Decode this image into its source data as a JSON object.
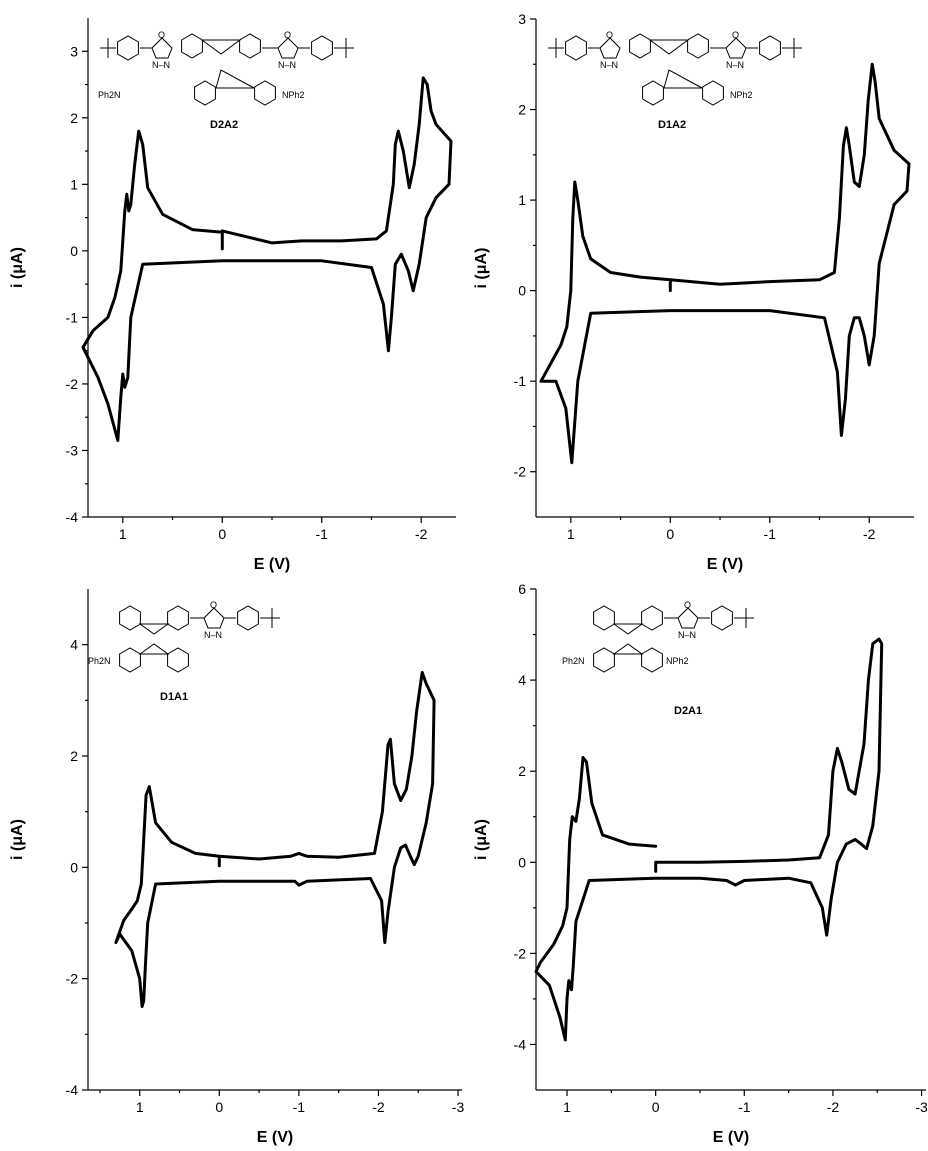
{
  "chart_data": [
    {
      "type": "line",
      "panel": "top-left",
      "structure_label": "D2A2",
      "xlabel": "E (V)",
      "ylabel": "i (μA)",
      "xlim": [
        1.35,
        -2.35
      ],
      "ylim": [
        -4,
        3.5
      ],
      "xticks": [
        1,
        0,
        -1,
        -2
      ],
      "xtick_labels": [
        "1",
        "0",
        "-1",
        "-2"
      ],
      "yticks": [
        -4,
        -3,
        -2,
        -1,
        0,
        1,
        2,
        3
      ],
      "ytick_labels": [
        "-4",
        "-3",
        "-2",
        "-1",
        "0",
        "1",
        "2",
        "3"
      ],
      "structure_text": [
        "Ph2N",
        "NPh2",
        "O",
        "N–N"
      ],
      "x": [
        0,
        0,
        -0.5,
        -0.8,
        -1.2,
        -1.55,
        -1.65,
        -1.72,
        -1.74,
        -1.77,
        -1.82,
        -1.88,
        -1.93,
        -1.98,
        -2.02,
        -2.06,
        -2.1,
        -2.15,
        -2.3,
        -2.28,
        -2.15,
        -2.05,
        -2.0,
        -1.98,
        -1.92,
        -1.87,
        -1.8,
        -1.74,
        -1.7,
        -1.67,
        -1.62,
        -1.5,
        -1.0,
        0,
        0.8,
        0.92,
        0.95,
        0.98,
        1.0,
        1.02,
        1.05,
        1.15,
        1.25,
        1.4,
        1.3,
        1.15,
        1.08,
        1.02,
        0.98,
        0.96,
        0.94,
        0.92,
        0.88,
        0.84,
        0.8,
        0.75,
        0.6,
        0.3,
        0
      ],
      "y": [
        0.03,
        0.3,
        0.12,
        0.15,
        0.15,
        0.18,
        0.3,
        1.0,
        1.6,
        1.8,
        1.5,
        0.95,
        1.3,
        1.9,
        2.6,
        2.5,
        2.1,
        1.9,
        1.65,
        1.0,
        0.8,
        0.5,
        0.0,
        -0.2,
        -0.6,
        -0.3,
        -0.05,
        -0.2,
        -1.0,
        -1.5,
        -0.8,
        -0.25,
        -0.15,
        -0.15,
        -0.2,
        -1.0,
        -1.9,
        -2.05,
        -1.85,
        -2.2,
        -2.85,
        -2.3,
        -1.9,
        -1.45,
        -1.2,
        -1.0,
        -0.7,
        -0.3,
        0.6,
        0.85,
        0.6,
        0.7,
        1.3,
        1.8,
        1.6,
        0.95,
        0.55,
        0.32,
        0.28
      ]
    },
    {
      "type": "line",
      "panel": "top-right",
      "structure_label": "D1A2",
      "xlabel": "E (V)",
      "ylabel": "i (μA)",
      "xlim": [
        1.35,
        -2.45
      ],
      "ylim": [
        -2.5,
        3
      ],
      "xticks": [
        1,
        0,
        -1,
        -2
      ],
      "xtick_labels": [
        "1",
        "0",
        "-1",
        "-2"
      ],
      "yticks": [
        -2,
        -1,
        0,
        1,
        2,
        3
      ],
      "ytick_labels": [
        "-2",
        "-1",
        "0",
        "1",
        "2",
        "3"
      ],
      "structure_text": [
        "NPh2",
        "O",
        "N–N"
      ],
      "x": [
        0,
        0,
        -0.5,
        -1.0,
        -1.5,
        -1.65,
        -1.7,
        -1.74,
        -1.77,
        -1.8,
        -1.85,
        -1.9,
        -1.95,
        -1.99,
        -2.03,
        -2.06,
        -2.1,
        -2.25,
        -2.4,
        -2.38,
        -2.25,
        -2.1,
        -2.05,
        -2.0,
        -1.95,
        -1.9,
        -1.85,
        -1.8,
        -1.76,
        -1.72,
        -1.68,
        -1.55,
        -1.0,
        0,
        0.8,
        0.93,
        0.97,
        0.99,
        1.01,
        1.05,
        1.15,
        1.3,
        1.2,
        1.1,
        1.04,
        1.0,
        0.98,
        0.96,
        0.93,
        0.88,
        0.8,
        0.6,
        0.3,
        0
      ],
      "y": [
        0.0,
        0.12,
        0.07,
        0.1,
        0.12,
        0.2,
        0.8,
        1.6,
        1.8,
        1.6,
        1.2,
        1.15,
        1.5,
        2.1,
        2.5,
        2.3,
        1.9,
        1.55,
        1.4,
        1.1,
        0.95,
        0.3,
        -0.5,
        -0.82,
        -0.5,
        -0.3,
        -0.3,
        -0.5,
        -1.2,
        -1.6,
        -0.9,
        -0.3,
        -0.22,
        -0.22,
        -0.25,
        -1.0,
        -1.6,
        -1.9,
        -1.7,
        -1.3,
        -1.0,
        -1.0,
        -0.8,
        -0.6,
        -0.4,
        0.0,
        0.8,
        1.2,
        1.0,
        0.6,
        0.35,
        0.2,
        0.15,
        0.12
      ]
    },
    {
      "type": "line",
      "panel": "bottom-left",
      "structure_label": "D1A1",
      "xlabel": "E (V)",
      "ylabel": "i (μA)",
      "xlim": [
        1.65,
        -3.05
      ],
      "ylim": [
        -4,
        5
      ],
      "xticks": [
        1,
        0,
        -1,
        -2,
        -3
      ],
      "xtick_labels": [
        "1",
        "0",
        "-1",
        "-2",
        "-3"
      ],
      "yticks": [
        -4,
        -2,
        0,
        2,
        4
      ],
      "ytick_labels": [
        "-4",
        "-2",
        "0",
        "2",
        "4"
      ],
      "structure_text": [
        "Ph2N",
        "O",
        "N–N"
      ],
      "x": [
        0,
        0,
        -0.5,
        -0.9,
        -1.0,
        -1.1,
        -1.5,
        -1.95,
        -2.05,
        -2.12,
        -2.15,
        -2.2,
        -2.28,
        -2.35,
        -2.42,
        -2.48,
        -2.55,
        -2.6,
        -2.7,
        -2.68,
        -2.6,
        -2.5,
        -2.45,
        -2.4,
        -2.34,
        -2.28,
        -2.2,
        -2.12,
        -2.08,
        -2.04,
        -1.9,
        -1.1,
        -1.0,
        -0.95,
        -0.5,
        0,
        0.8,
        0.9,
        0.93,
        0.95,
        0.97,
        1.0,
        1.1,
        1.25,
        1.3,
        1.2,
        1.1,
        1.03,
        0.98,
        0.95,
        0.92,
        0.88,
        0.8,
        0.6,
        0.3,
        0
      ],
      "y": [
        0.03,
        0.2,
        0.15,
        0.2,
        0.25,
        0.2,
        0.18,
        0.25,
        1.0,
        2.2,
        2.3,
        1.5,
        1.2,
        1.4,
        2.0,
        2.8,
        3.5,
        3.3,
        3.0,
        1.5,
        0.8,
        0.2,
        0.05,
        0.2,
        0.4,
        0.35,
        0.0,
        -0.8,
        -1.35,
        -0.6,
        -0.2,
        -0.25,
        -0.32,
        -0.25,
        -0.25,
        -0.25,
        -0.3,
        -1.0,
        -1.8,
        -2.4,
        -2.5,
        -2.0,
        -1.5,
        -1.2,
        -1.35,
        -0.95,
        -0.75,
        -0.6,
        -0.3,
        0.5,
        1.3,
        1.45,
        0.8,
        0.45,
        0.25,
        0.2
      ]
    },
    {
      "type": "line",
      "panel": "bottom-right",
      "structure_label": "D2A1",
      "xlabel": "E (V)",
      "ylabel": "i (μA)",
      "xlim": [
        1.35,
        -3.05
      ],
      "ylim": [
        -5,
        6
      ],
      "xticks": [
        1,
        0,
        -1,
        -2,
        -3
      ],
      "xtick_labels": [
        "1",
        "0",
        "-1",
        "-2",
        "-3"
      ],
      "yticks": [
        -4,
        -2,
        0,
        2,
        4,
        6
      ],
      "ytick_labels": [
        "-4",
        "-2",
        "0",
        "2",
        "4",
        "6"
      ],
      "structure_text": [
        "Ph2N",
        "NPh2",
        "O",
        "N–N"
      ],
      "x": [
        0,
        0,
        -0.5,
        -1.0,
        -1.5,
        -1.85,
        -1.95,
        -2.0,
        -2.05,
        -2.1,
        -2.18,
        -2.25,
        -2.35,
        -2.4,
        -2.45,
        -2.52,
        -2.55,
        -2.52,
        -2.45,
        -2.38,
        -2.32,
        -2.25,
        -2.15,
        -2.05,
        -1.98,
        -1.93,
        -1.88,
        -1.75,
        -1.5,
        -1.0,
        -0.9,
        -0.8,
        -0.5,
        0,
        0.75,
        0.9,
        0.93,
        0.95,
        0.98,
        1.0,
        1.02,
        1.08,
        1.2,
        1.35,
        1.3,
        1.15,
        1.05,
        1.0,
        0.97,
        0.94,
        0.9,
        0.86,
        0.82,
        0.78,
        0.72,
        0.6,
        0.3,
        0
      ],
      "y": [
        -0.2,
        0.0,
        0.0,
        0.02,
        0.05,
        0.1,
        0.6,
        2.0,
        2.5,
        2.2,
        1.6,
        1.5,
        2.6,
        4.0,
        4.8,
        4.9,
        4.8,
        2.0,
        0.8,
        0.3,
        0.4,
        0.5,
        0.4,
        0.0,
        -0.8,
        -1.6,
        -1.0,
        -0.45,
        -0.35,
        -0.4,
        -0.5,
        -0.4,
        -0.35,
        -0.35,
        -0.4,
        -1.3,
        -2.3,
        -2.8,
        -2.6,
        -3.0,
        -3.9,
        -3.4,
        -2.7,
        -2.4,
        -2.2,
        -1.8,
        -1.4,
        -1.0,
        0.5,
        1.0,
        0.9,
        1.4,
        2.3,
        2.2,
        1.3,
        0.6,
        0.4,
        0.35
      ]
    }
  ]
}
